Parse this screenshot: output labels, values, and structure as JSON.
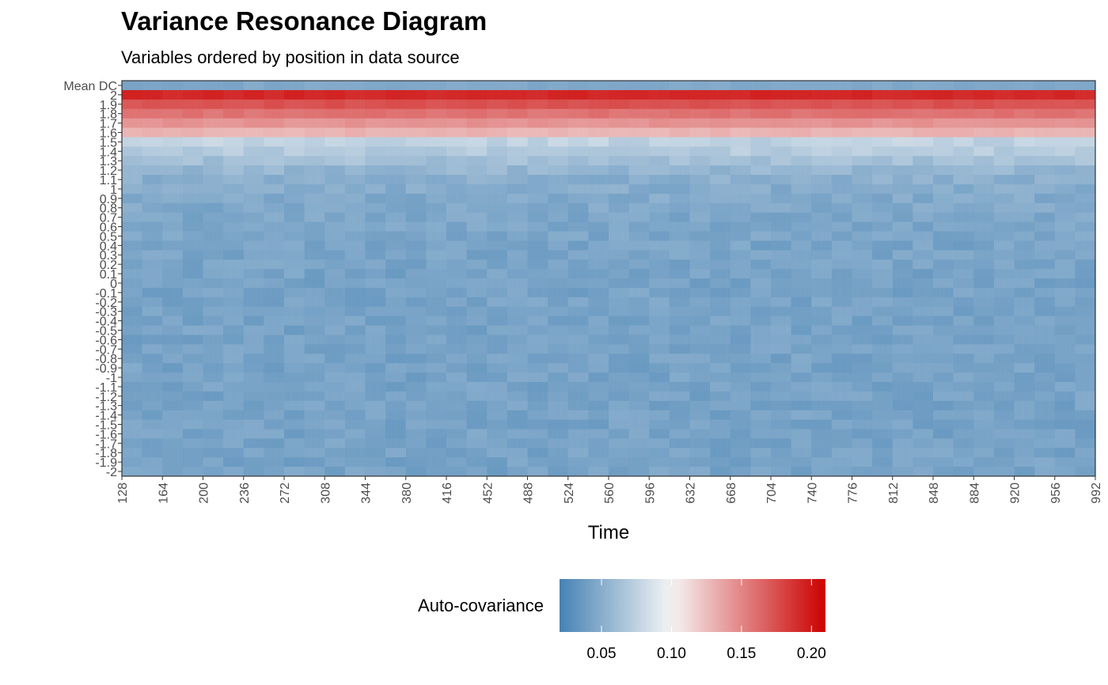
{
  "chart_data": {
    "type": "heatmap",
    "title": "Variance Resonance Diagram",
    "subtitle": "Variables ordered by position in data source",
    "xlabel": "Time",
    "ylabel": "",
    "x_ticks": [
      128,
      164,
      200,
      236,
      272,
      308,
      344,
      380,
      416,
      452,
      488,
      524,
      560,
      596,
      632,
      668,
      704,
      740,
      776,
      812,
      848,
      884,
      920,
      956,
      992
    ],
    "xlim": [
      128,
      992
    ],
    "y_categories": [
      "Mean DC",
      "2",
      "1.9",
      "1.8",
      "1.7",
      "1.6",
      "1.5",
      "1.4",
      "1.3",
      "1.2",
      "1.1",
      "1",
      "0.9",
      "0.8",
      "0.7",
      "0.6",
      "0.5",
      "0.4",
      "0.3",
      "0.2",
      "0.1",
      "0",
      "-0.1",
      "-0.2",
      "-0.3",
      "-0.4",
      "-0.5",
      "-0.6",
      "-0.7",
      "-0.8",
      "-0.9",
      "-1",
      "-1.1",
      "-1.2",
      "-1.3",
      "-1.4",
      "-1.5",
      "-1.6",
      "-1.7",
      "-1.8",
      "-1.9",
      "-2"
    ],
    "row_values": [
      0.045,
      0.195,
      0.175,
      0.16,
      0.145,
      0.13,
      0.075,
      0.07,
      0.062,
      0.055,
      0.05,
      0.048,
      0.046,
      0.045,
      0.044,
      0.043,
      0.043,
      0.042,
      0.042,
      0.042,
      0.041,
      0.041,
      0.041,
      0.041,
      0.041,
      0.041,
      0.041,
      0.041,
      0.041,
      0.041,
      0.041,
      0.041,
      0.041,
      0.041,
      0.041,
      0.041,
      0.041,
      0.041,
      0.041,
      0.041,
      0.041,
      0.041
    ],
    "legend": {
      "title": "Auto-covariance",
      "position": "bottom",
      "ticks": [
        "0.05",
        "0.10",
        "0.15",
        "0.20"
      ],
      "tick_values": [
        0.05,
        0.1,
        0.15,
        0.2
      ],
      "range": [
        0.02,
        0.21
      ],
      "colors": [
        "#4682b4",
        "#f5f5f5",
        "#cc0000"
      ],
      "midpoint": 0.1
    },
    "grid": false
  }
}
